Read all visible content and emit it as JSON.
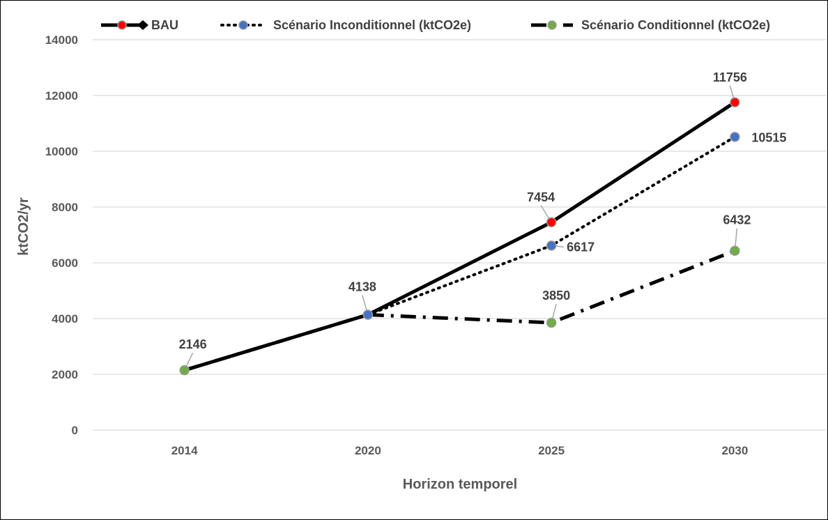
{
  "chart_data": {
    "type": "line",
    "categories": [
      "2014",
      "2020",
      "2025",
      "2030"
    ],
    "xlabel": "Horizon temporel",
    "ylabel": "ktCO2/yr",
    "ylim": [
      0,
      14000
    ],
    "yticks": [
      0,
      2000,
      4000,
      6000,
      8000,
      10000,
      12000,
      14000
    ],
    "grid": true,
    "legend_position": "top",
    "series": [
      {
        "name": "BAU",
        "style": "solid",
        "color": "#000000",
        "marker_color": "#ff0000",
        "points": [
          {
            "x": "2014",
            "y": 2146
          },
          {
            "x": "2020",
            "y": 4138
          },
          {
            "x": "2025",
            "y": 7454
          },
          {
            "x": "2030",
            "y": 11756
          }
        ]
      },
      {
        "name": "Scénario Inconditionnel (ktCO2e)",
        "style": "dotted",
        "color": "#000000",
        "marker_color": "#4472c4",
        "points": [
          {
            "x": "2020",
            "y": 4138
          },
          {
            "x": "2025",
            "y": 6617
          },
          {
            "x": "2030",
            "y": 10515
          }
        ]
      },
      {
        "name": "Scénario Conditionnel (ktCO2e)",
        "style": "dashdot",
        "color": "#000000",
        "marker_color": "#70ad47",
        "points": [
          {
            "x": "2014",
            "y": 2146
          },
          {
            "x": "2020",
            "y": 4138
          },
          {
            "x": "2025",
            "y": 3850
          },
          {
            "x": "2030",
            "y": 6432
          }
        ]
      }
    ],
    "data_labels": [
      {
        "x": "2014",
        "y": 2146,
        "text": "2146"
      },
      {
        "x": "2020",
        "y": 4138,
        "text": "4138"
      },
      {
        "x": "2025",
        "y": 7454,
        "text": "7454"
      },
      {
        "x": "2025",
        "y": 6617,
        "text": "6617"
      },
      {
        "x": "2025",
        "y": 3850,
        "text": "3850"
      },
      {
        "x": "2030",
        "y": 11756,
        "text": "11756"
      },
      {
        "x": "2030",
        "y": 10515,
        "text": "10515"
      },
      {
        "x": "2030",
        "y": 6432,
        "text": "6432"
      }
    ]
  }
}
